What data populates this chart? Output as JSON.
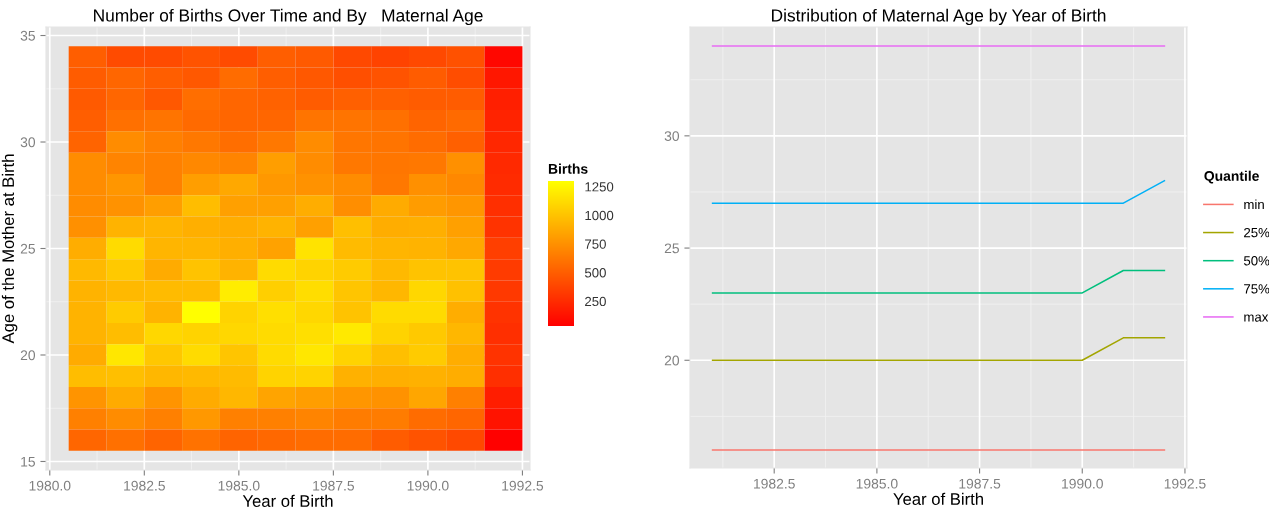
{
  "chart_data": [
    {
      "type": "heatmap",
      "title": "Number of Births Over Time and By   Maternal Age",
      "xlabel": "Year of Birth",
      "ylabel": "Age of the Mother at Birth",
      "clabel": "Births",
      "x": [
        1981,
        1982,
        1983,
        1984,
        1985,
        1986,
        1987,
        1988,
        1989,
        1990,
        1991,
        1992
      ],
      "y": [
        34,
        33,
        32,
        31,
        30,
        29,
        28,
        27,
        26,
        25,
        24,
        23,
        22,
        21,
        20,
        19,
        18,
        17,
        16
      ],
      "cells": [
        [
          490,
          400,
          400,
          440,
          400,
          490,
          470,
          390,
          360,
          390,
          430,
          60
        ],
        [
          480,
          530,
          490,
          460,
          560,
          490,
          460,
          420,
          440,
          480,
          410,
          140
        ],
        [
          470,
          530,
          460,
          570,
          530,
          510,
          480,
          500,
          500,
          480,
          480,
          180
        ],
        [
          490,
          580,
          600,
          550,
          530,
          530,
          600,
          600,
          580,
          520,
          550,
          200
        ],
        [
          520,
          720,
          660,
          620,
          570,
          620,
          720,
          610,
          600,
          560,
          500,
          220
        ],
        [
          720,
          680,
          660,
          700,
          680,
          810,
          720,
          620,
          610,
          620,
          740,
          230
        ],
        [
          720,
          770,
          660,
          810,
          860,
          780,
          750,
          720,
          620,
          740,
          700,
          240
        ],
        [
          720,
          750,
          810,
          960,
          820,
          820,
          880,
          730,
          870,
          800,
          770,
          260
        ],
        [
          740,
          910,
          920,
          890,
          880,
          910,
          820,
          970,
          880,
          890,
          820,
          280
        ],
        [
          880,
          1110,
          920,
          920,
          890,
          830,
          1150,
          950,
          920,
          910,
          860,
          340
        ],
        [
          940,
          1020,
          870,
          990,
          910,
          1110,
          1070,
          1030,
          940,
          990,
          990,
          320
        ],
        [
          910,
          940,
          950,
          950,
          1200,
          1050,
          1120,
          1000,
          930,
          1090,
          980,
          310
        ],
        [
          910,
          1030,
          910,
          1285,
          1070,
          1130,
          1090,
          990,
          1110,
          1110,
          880,
          280
        ],
        [
          910,
          960,
          1090,
          1070,
          1090,
          1110,
          1130,
          1180,
          1070,
          1020,
          930,
          260
        ],
        [
          870,
          1170,
          1010,
          1110,
          1000,
          1110,
          1170,
          1070,
          970,
          1030,
          880,
          280
        ],
        [
          960,
          970,
          930,
          940,
          950,
          1070,
          1070,
          900,
          890,
          900,
          880,
          260
        ],
        [
          760,
          870,
          760,
          870,
          930,
          840,
          810,
          770,
          750,
          850,
          660,
          170
        ],
        [
          660,
          720,
          660,
          780,
          660,
          660,
          680,
          640,
          640,
          560,
          530,
          120
        ],
        [
          530,
          580,
          520,
          590,
          520,
          540,
          560,
          560,
          480,
          440,
          390,
          30
        ]
      ],
      "clim": [
        25,
        1290
      ],
      "cticks": [
        250,
        500,
        750,
        1000,
        1250
      ],
      "xlim": [
        1979.9,
        1992.7
      ],
      "xticks": [
        {
          "value": 1980,
          "label": "1980.0"
        },
        1982.5,
        {
          "value": 1985,
          "label": "1985.0"
        },
        1987.5,
        {
          "value": 1990,
          "label": "1990.0"
        },
        1992.5
      ],
      "ylim": [
        14.6,
        35.4
      ],
      "yticks": [
        15,
        20,
        25,
        30,
        35
      ],
      "grid": true
    },
    {
      "type": "line",
      "title": "Distribution of Maternal Age by Year of Birth",
      "xlabel": "Year of Birth",
      "legend_title": "Quantile",
      "legend": "right",
      "x": [
        1981,
        1982,
        1983,
        1984,
        1985,
        1986,
        1987,
        1988,
        1989,
        1990,
        1991,
        1992
      ],
      "series": [
        {
          "name": "min",
          "color": "#f8766d",
          "values": [
            16,
            16,
            16,
            16,
            16,
            16,
            16,
            16,
            16,
            16,
            16,
            16
          ]
        },
        {
          "name": "25%",
          "color": "#a3a500",
          "values": [
            20,
            20,
            20,
            20,
            20,
            20,
            20,
            20,
            20,
            20,
            21,
            21
          ]
        },
        {
          "name": "50%",
          "color": "#00bf7d",
          "values": [
            23,
            23,
            23,
            23,
            23,
            23,
            23,
            23,
            23,
            23,
            24,
            24
          ]
        },
        {
          "name": "75%",
          "color": "#00b0f6",
          "values": [
            27,
            27,
            27,
            27,
            27,
            27,
            27,
            27,
            27,
            27,
            27,
            28
          ]
        },
        {
          "name": "max",
          "color": "#e76bf3",
          "values": [
            34,
            34,
            34,
            34,
            34,
            34,
            34,
            34,
            34,
            34,
            34,
            34
          ]
        }
      ],
      "xlim": [
        1980.45,
        1992.55
      ],
      "xticks": [
        1982.5,
        {
          "value": 1985,
          "label": "1985.0"
        },
        1987.5,
        {
          "value": 1990,
          "label": "1990.0"
        },
        1992.5
      ],
      "ylim": [
        15.2,
        34.85
      ],
      "yticks": [
        20,
        25,
        30
      ],
      "grid": true,
      "marker": "none",
      "line_style": "solid"
    }
  ]
}
